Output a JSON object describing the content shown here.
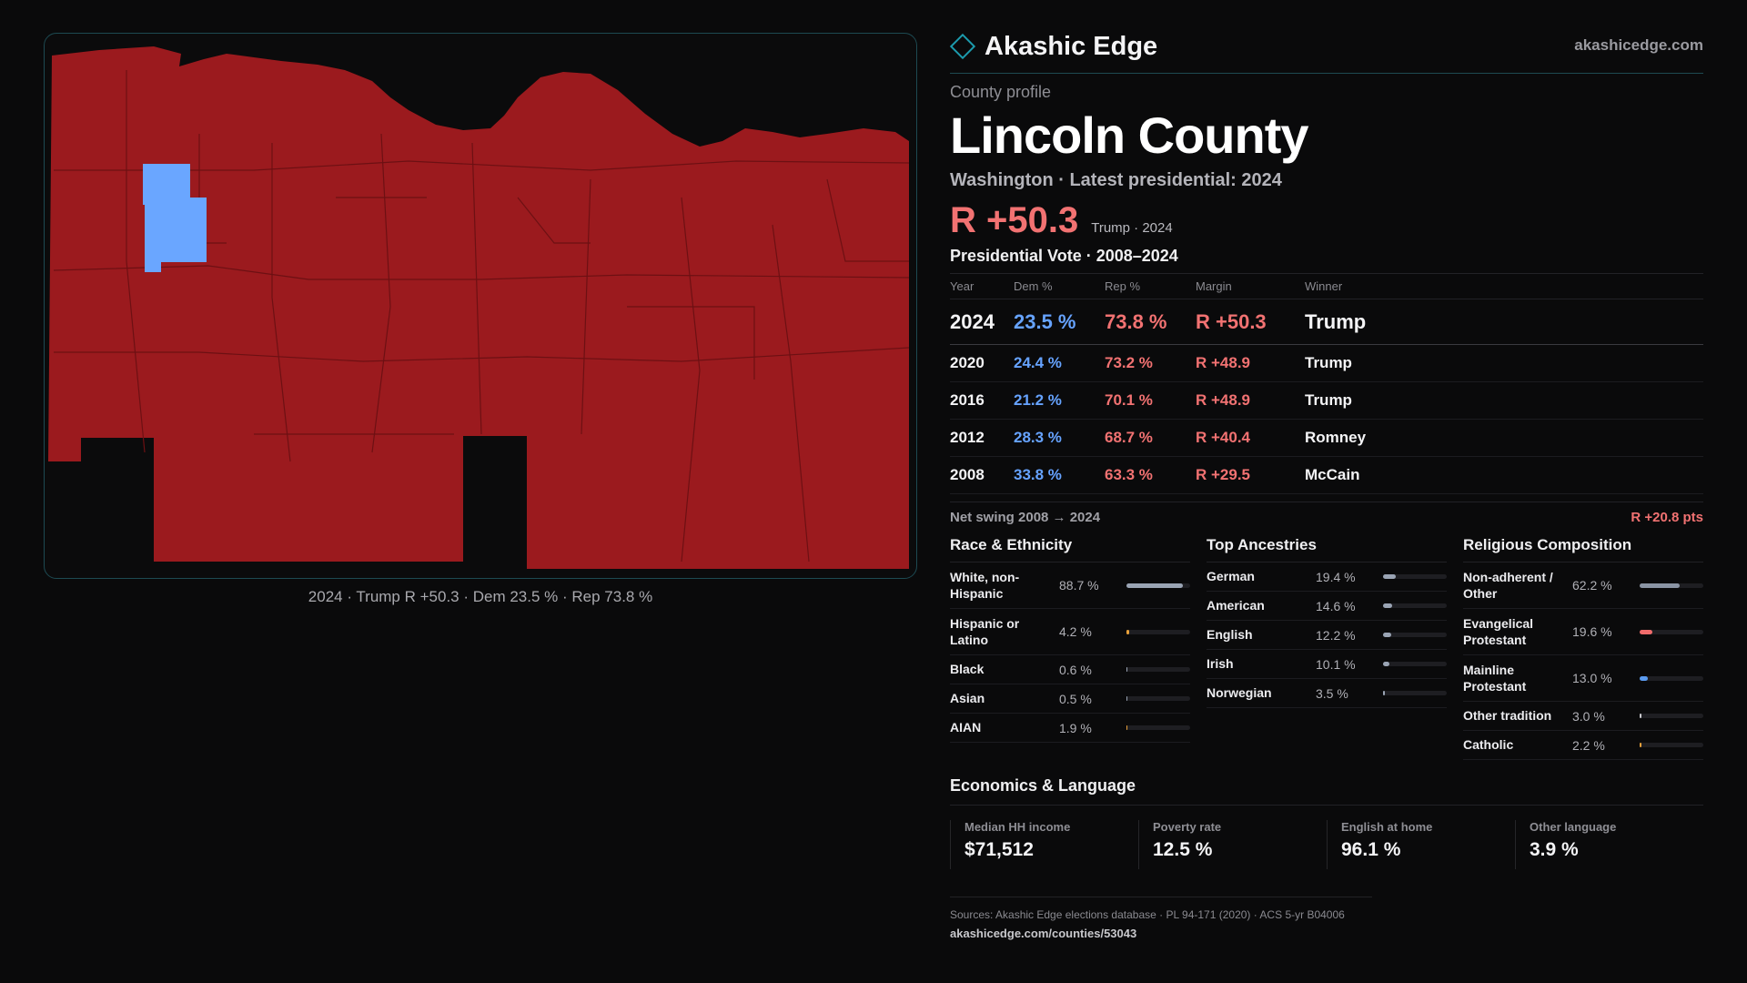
{
  "brand": {
    "name": "Akashic Edge",
    "url": "akashicedge.com",
    "accent": "#1c9bad",
    "icon": "diamond-icon"
  },
  "map": {
    "caption": "2024 · Trump R +50.3 · Dem 23.5 % · Rep 73.8 %",
    "colors": {
      "rep": "#9b1a1e",
      "dem": "#6aa6ff",
      "background": "#0b0b0c"
    }
  },
  "profile": {
    "kicker": "County profile",
    "name": "Lincoln County",
    "subtitle": "Washington · Latest presidential: 2024",
    "headline_margin": "R +50.3",
    "headline_note": "Trump · 2024"
  },
  "votes": {
    "title": "Presidential Vote · 2008–2024",
    "headers": {
      "year": "Year",
      "dem": "Dem %",
      "rep": "Rep %",
      "margin": "Margin",
      "winner": "Winner"
    },
    "rows": [
      {
        "year": "2024",
        "dem": "23.5 %",
        "rep": "73.8 %",
        "margin": "R +50.3",
        "winner": "Trump"
      },
      {
        "year": "2020",
        "dem": "24.4 %",
        "rep": "73.2 %",
        "margin": "R +48.9",
        "winner": "Trump"
      },
      {
        "year": "2016",
        "dem": "21.2 %",
        "rep": "70.1 %",
        "margin": "R +48.9",
        "winner": "Trump"
      },
      {
        "year": "2012",
        "dem": "28.3 %",
        "rep": "68.7 %",
        "margin": "R +40.4",
        "winner": "Romney"
      },
      {
        "year": "2008",
        "dem": "33.8 %",
        "rep": "63.3 %",
        "margin": "R +29.5",
        "winner": "McCain"
      }
    ],
    "swing_label": "Net swing 2008 → 2024",
    "swing_value": "R +20.8 pts",
    "colors": {
      "dem": "#66a3ff",
      "rep": "#f27272"
    }
  },
  "race": {
    "title": "Race & Ethnicity",
    "items": [
      {
        "label": "White, non-Hispanic",
        "value": "88.7 %",
        "share": 0.887,
        "color": "#9aa4b4"
      },
      {
        "label": "Hispanic or Latino",
        "value": "4.2 %",
        "share": 0.042,
        "color": "#e8a13a"
      },
      {
        "label": "Black",
        "value": "0.6 %",
        "share": 0.006,
        "color": "#9aa4b4"
      },
      {
        "label": "Asian",
        "value": "0.5 %",
        "share": 0.005,
        "color": "#9aa4b4"
      },
      {
        "label": "AIAN",
        "value": "1.9 %",
        "share": 0.019,
        "color": "#e8a13a"
      }
    ]
  },
  "ancestry": {
    "title": "Top Ancestries",
    "items": [
      {
        "label": "German",
        "value": "19.4 %",
        "share": 0.194,
        "color": "#9aa4b4"
      },
      {
        "label": "American",
        "value": "14.6 %",
        "share": 0.146,
        "color": "#9aa4b4"
      },
      {
        "label": "English",
        "value": "12.2 %",
        "share": 0.122,
        "color": "#9aa4b4"
      },
      {
        "label": "Irish",
        "value": "10.1 %",
        "share": 0.101,
        "color": "#9aa4b4"
      },
      {
        "label": "Norwegian",
        "value": "3.5 %",
        "share": 0.035,
        "color": "#9aa4b4"
      }
    ]
  },
  "religion": {
    "title": "Religious Composition",
    "items": [
      {
        "label": "Non-adherent / Other",
        "value": "62.2 %",
        "share": 0.622,
        "color": "#8a94a4"
      },
      {
        "label": "Evangelical Protestant",
        "value": "19.6 %",
        "share": 0.196,
        "color": "#f06b6b"
      },
      {
        "label": "Mainline Protestant",
        "value": "13.0 %",
        "share": 0.13,
        "color": "#5b9bf0"
      },
      {
        "label": "Other tradition",
        "value": "3.0 %",
        "share": 0.03,
        "color": "#c8c8cc"
      },
      {
        "label": "Catholic",
        "value": "2.2 %",
        "share": 0.022,
        "color": "#e8a13a"
      }
    ]
  },
  "economics": {
    "title": "Economics & Language",
    "items": [
      {
        "label": "Median HH income",
        "value": "$71,512"
      },
      {
        "label": "Poverty rate",
        "value": "12.5 %"
      },
      {
        "label": "English at home",
        "value": "96.1 %"
      },
      {
        "label": "Other language",
        "value": "3.9 %"
      }
    ]
  },
  "sources": {
    "line1": "Sources: Akashic Edge elections database · PL 94-171 (2020) · ACS 5-yr B04006",
    "line2": "akashicedge.com/counties/53043"
  }
}
